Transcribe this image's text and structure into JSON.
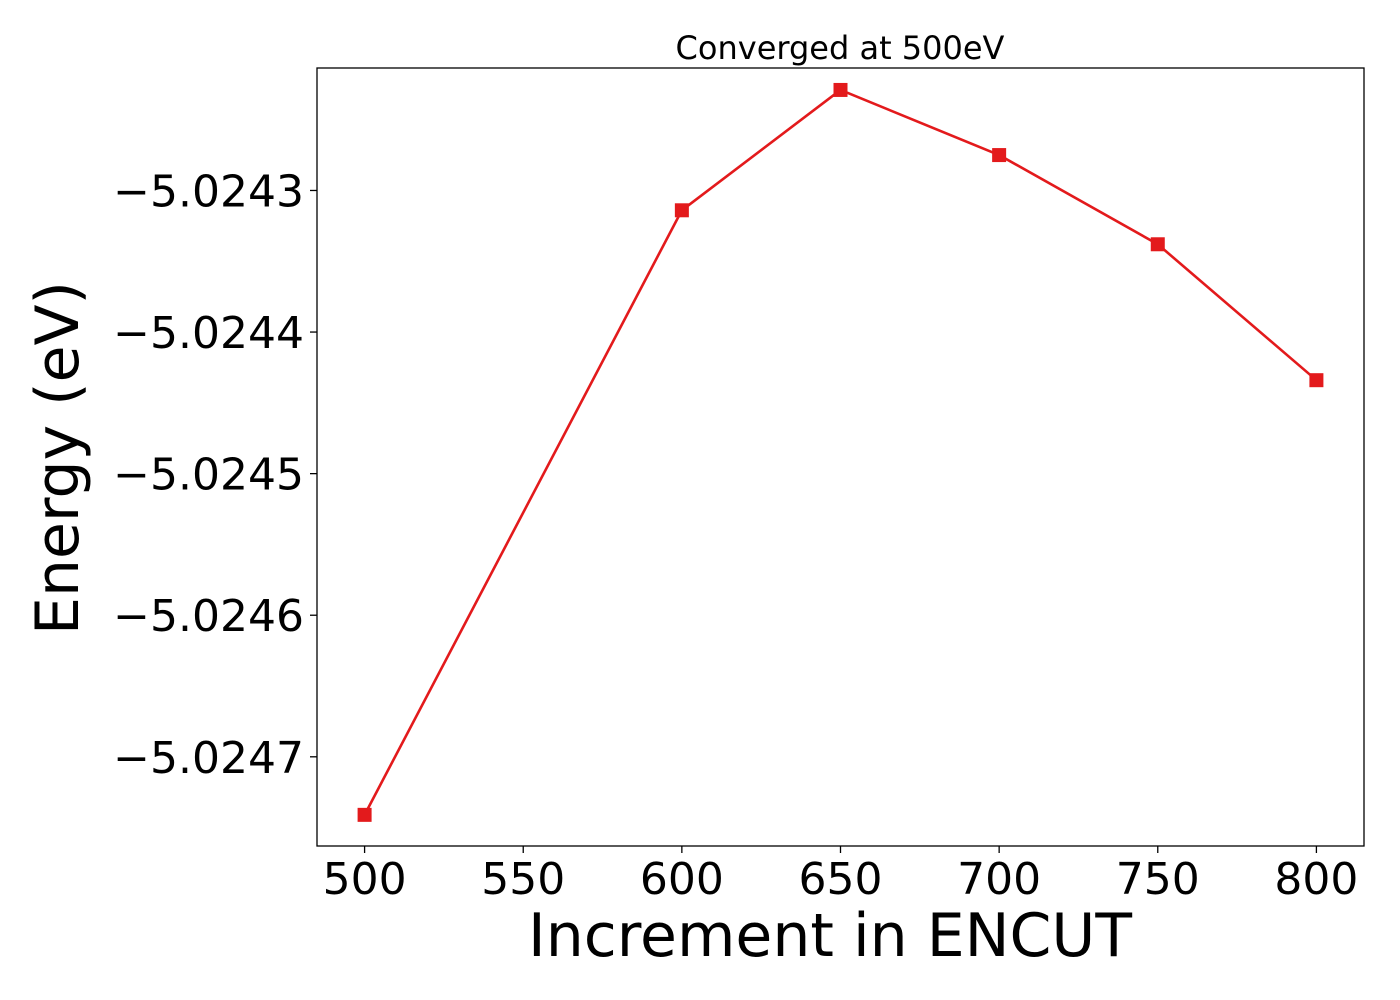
{
  "chart_data": {
    "type": "line",
    "title": "Converged at 500eV",
    "xlabel": "Increment in ENCUT",
    "ylabel": "Energy (eV)",
    "x": [
      500,
      600,
      650,
      700,
      750,
      800
    ],
    "series": [
      {
        "values": [
          -5.024741,
          -5.024314,
          -5.024229,
          -5.024275,
          -5.024338,
          -5.024434
        ],
        "color": "#e31a1c",
        "marker": "square"
      }
    ],
    "xlim": [
      485,
      815
    ],
    "ylim": [
      -5.024763,
      -5.0242135
    ],
    "xticks": [
      500,
      550,
      600,
      650,
      700,
      750,
      800
    ],
    "xtick_labels": [
      "500",
      "550",
      "600",
      "650",
      "700",
      "750",
      "800"
    ],
    "yticks": [
      -5.0243,
      -5.0244,
      -5.0245,
      -5.0246,
      -5.0247
    ],
    "ytick_labels": [
      "−5.0243",
      "−5.0244",
      "−5.0245",
      "−5.0246",
      "−5.0247"
    ],
    "grid": false,
    "legend": false
  }
}
